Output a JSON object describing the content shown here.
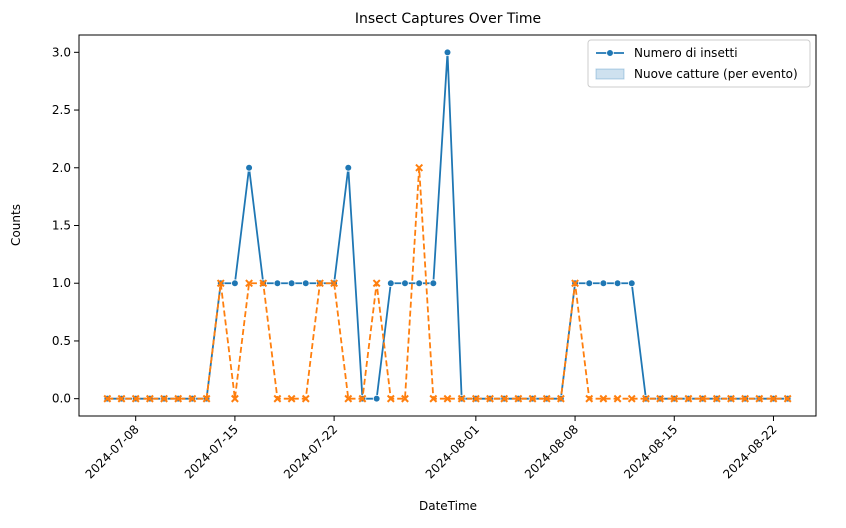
{
  "chart_data": {
    "type": "line",
    "title": "Insect Captures Over Time",
    "xlabel": "DateTime",
    "ylabel": "Counts",
    "ylim": [
      -0.15,
      3.15
    ],
    "xlim": [
      "2024-07-04",
      "2024-08-25"
    ],
    "grid": false,
    "legend_position": "top-right",
    "x_tick_labels": [
      "2024-07-08",
      "2024-07-15",
      "2024-07-22",
      "2024-08-01",
      "2024-08-08",
      "2024-08-15",
      "2024-08-22"
    ],
    "y_tick_labels": [
      "0.0",
      "0.5",
      "1.0",
      "1.5",
      "2.0",
      "2.5",
      "3.0"
    ],
    "x": [
      "2024-07-06",
      "2024-07-07",
      "2024-07-08",
      "2024-07-09",
      "2024-07-10",
      "2024-07-11",
      "2024-07-12",
      "2024-07-13",
      "2024-07-14",
      "2024-07-15",
      "2024-07-16",
      "2024-07-17",
      "2024-07-18",
      "2024-07-19",
      "2024-07-20",
      "2024-07-21",
      "2024-07-22",
      "2024-07-23",
      "2024-07-24",
      "2024-07-25",
      "2024-07-26",
      "2024-07-27",
      "2024-07-28",
      "2024-07-29",
      "2024-07-30",
      "2024-07-31",
      "2024-08-01",
      "2024-08-02",
      "2024-08-03",
      "2024-08-04",
      "2024-08-05",
      "2024-08-06",
      "2024-08-07",
      "2024-08-08",
      "2024-08-09",
      "2024-08-10",
      "2024-08-11",
      "2024-08-12",
      "2024-08-13",
      "2024-08-14",
      "2024-08-15",
      "2024-08-16",
      "2024-08-17",
      "2024-08-18",
      "2024-08-19",
      "2024-08-20",
      "2024-08-21",
      "2024-08-22",
      "2024-08-23"
    ],
    "series": [
      {
        "name": "Numero di insetti",
        "color": "#1f77b4",
        "marker": "circle",
        "style": "solid",
        "values": [
          0,
          0,
          0,
          0,
          0,
          0,
          0,
          0,
          1,
          1,
          2,
          1,
          1,
          1,
          1,
          1,
          1,
          2,
          0,
          0,
          1,
          1,
          1,
          1,
          3,
          0,
          0,
          0,
          0,
          0,
          0,
          0,
          0,
          1,
          1,
          1,
          1,
          1,
          0,
          0,
          0,
          0,
          0,
          0,
          0,
          0,
          0,
          0,
          0
        ]
      },
      {
        "name": "Nuove catture (per evento)",
        "color": "#ff7f0e",
        "marker": "x",
        "style": "dashed",
        "values": [
          0,
          0,
          0,
          0,
          0,
          0,
          0,
          0,
          1,
          0,
          1,
          1,
          0,
          0,
          0,
          1,
          1,
          0,
          0,
          1,
          0,
          0,
          2,
          0,
          0,
          0,
          0,
          0,
          0,
          0,
          0,
          0,
          0,
          1,
          0,
          0,
          0,
          0,
          0,
          0,
          0,
          0,
          0,
          0,
          0,
          0,
          0,
          0,
          0
        ]
      }
    ],
    "legend": [
      {
        "label": "Numero di insetti",
        "kind": "line-marker",
        "color": "#1f77b4"
      },
      {
        "label": "Nuove catture (per evento)",
        "kind": "area-patch",
        "color": "#1f77b4"
      }
    ]
  }
}
